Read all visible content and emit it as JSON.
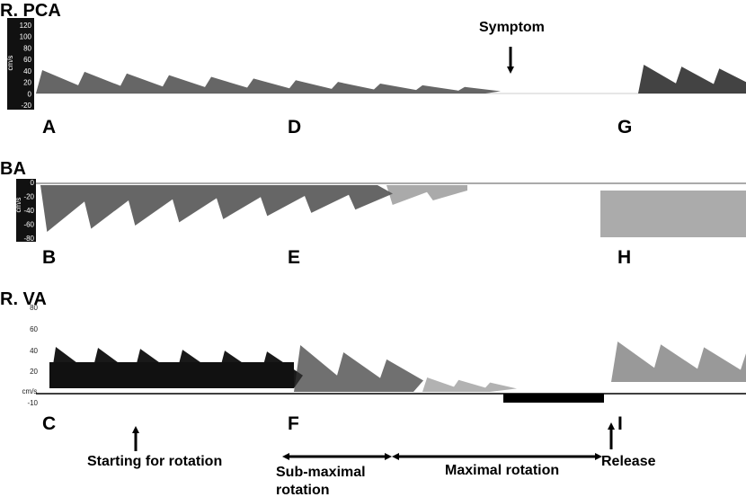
{
  "panels": [
    {
      "title": "R. PCA",
      "unit": "cm/s",
      "ticks": [
        "120",
        "100",
        "80",
        "60",
        "40",
        "20",
        "0",
        "-20"
      ],
      "letters": [
        "A",
        "D",
        "G"
      ]
    },
    {
      "title": "BA",
      "unit": "cm/s",
      "ticks": [
        "0",
        "-20",
        "-40",
        "-60",
        "-80"
      ],
      "letters": [
        "B",
        "E",
        "H"
      ]
    },
    {
      "title": "R. VA",
      "unit": "cm/s",
      "ticks": [
        "80",
        "60",
        "40",
        "20",
        "-10"
      ],
      "letters": [
        "C",
        "F",
        "I"
      ]
    }
  ],
  "annotations": {
    "symptom": "Symptom",
    "start": "Starting for rotation",
    "sub_maximal": [
      "Sub-maximal",
      "rotation"
    ],
    "maximal": "Maximal rotation",
    "release": "Release"
  }
}
